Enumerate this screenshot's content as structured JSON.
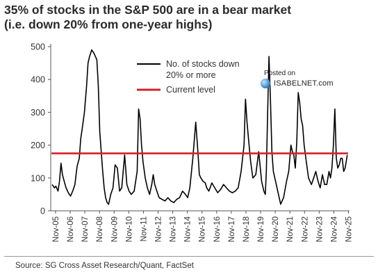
{
  "title": {
    "line1": "35% of stocks in the S&P 500 are in a bear market",
    "line2": "(i.e. down 20% from one-year highs)"
  },
  "source": "Source: SG Cross Asset Research/Quant, FactSet",
  "watermark": {
    "posted": "Posted on",
    "site": "ISABELNET.com"
  },
  "chart_data": {
    "type": "line",
    "title": "35% of stocks in the S&P 500 are in a bear market (i.e. down 20% from one-year highs)",
    "xlabel": "",
    "ylabel": "",
    "ylim": [
      0,
      500
    ],
    "xlim": [
      2005.5,
      2025.9
    ],
    "yticks": [
      0,
      100,
      200,
      300,
      400,
      500
    ],
    "xticks": [
      {
        "pos": 2005.83,
        "label": "Nov-05"
      },
      {
        "pos": 2006.83,
        "label": "Nov-06"
      },
      {
        "pos": 2007.83,
        "label": "Nov-07"
      },
      {
        "pos": 2008.83,
        "label": "Nov-08"
      },
      {
        "pos": 2009.83,
        "label": "Nov-09"
      },
      {
        "pos": 2010.83,
        "label": "Nov-10"
      },
      {
        "pos": 2011.83,
        "label": "Nov-11"
      },
      {
        "pos": 2012.83,
        "label": "Nov-12"
      },
      {
        "pos": 2013.83,
        "label": "Nov-13"
      },
      {
        "pos": 2014.83,
        "label": "Nov-14"
      },
      {
        "pos": 2015.83,
        "label": "Nov-15"
      },
      {
        "pos": 2016.83,
        "label": "Nov-16"
      },
      {
        "pos": 2017.83,
        "label": "Nov-17"
      },
      {
        "pos": 2018.83,
        "label": "Nov-18"
      },
      {
        "pos": 2019.83,
        "label": "Nov-19"
      },
      {
        "pos": 2020.83,
        "label": "Nov-20"
      },
      {
        "pos": 2021.83,
        "label": "Nov-21"
      },
      {
        "pos": 2022.83,
        "label": "Nov-22"
      },
      {
        "pos": 2023.83,
        "label": "Nov-23"
      },
      {
        "pos": 2024.83,
        "label": "Nov-24"
      },
      {
        "pos": 2025.83,
        "label": "Nov-25"
      }
    ],
    "grid": false,
    "legend_position": "top-center",
    "series": [
      {
        "name": "No. of stocks down 20% or more",
        "color": "#000000",
        "x": [
          2005.6,
          2005.75,
          2005.85,
          2006.0,
          2006.1,
          2006.2,
          2006.3,
          2006.45,
          2006.55,
          2006.7,
          2006.85,
          2007.0,
          2007.15,
          2007.3,
          2007.45,
          2007.55,
          2007.65,
          2007.8,
          2007.95,
          2008.05,
          2008.15,
          2008.3,
          2008.45,
          2008.55,
          2008.65,
          2008.75,
          2008.85,
          2008.95,
          2009.05,
          2009.15,
          2009.25,
          2009.35,
          2009.45,
          2009.6,
          2009.75,
          2009.9,
          2010.05,
          2010.2,
          2010.35,
          2010.45,
          2010.55,
          2010.7,
          2010.85,
          2011.0,
          2011.2,
          2011.4,
          2011.5,
          2011.6,
          2011.7,
          2011.8,
          2011.95,
          2012.1,
          2012.25,
          2012.4,
          2012.5,
          2012.6,
          2012.75,
          2012.9,
          2013.1,
          2013.3,
          2013.5,
          2013.7,
          2013.9,
          2014.1,
          2014.3,
          2014.5,
          2014.7,
          2014.85,
          2015.0,
          2015.2,
          2015.4,
          2015.55,
          2015.65,
          2015.75,
          2015.9,
          2016.05,
          2016.15,
          2016.3,
          2016.5,
          2016.7,
          2016.9,
          2017.1,
          2017.3,
          2017.5,
          2017.7,
          2017.9,
          2018.1,
          2018.3,
          2018.5,
          2018.7,
          2018.8,
          2018.9,
          2019.0,
          2019.15,
          2019.3,
          2019.5,
          2019.7,
          2019.9,
          2020.05,
          2020.15,
          2020.22,
          2020.3,
          2020.4,
          2020.5,
          2020.6,
          2020.7,
          2020.8,
          2020.9,
          2021.0,
          2021.2,
          2021.4,
          2021.6,
          2021.75,
          2021.9,
          2022.0,
          2022.1,
          2022.2,
          2022.3,
          2022.4,
          2022.5,
          2022.6,
          2022.7,
          2022.8,
          2022.95,
          2023.1,
          2023.3,
          2023.45,
          2023.6,
          2023.75,
          2023.9,
          2024.05,
          2024.2,
          2024.35,
          2024.5,
          2024.6,
          2024.7,
          2024.8,
          2024.9,
          2025.0,
          2025.1,
          2025.2,
          2025.3,
          2025.4,
          2025.5,
          2025.6,
          2025.75
        ],
        "y": [
          80,
          70,
          75,
          60,
          90,
          145,
          110,
          85,
          70,
          55,
          45,
          60,
          80,
          135,
          160,
          220,
          250,
          300,
          380,
          450,
          470,
          490,
          480,
          470,
          460,
          380,
          240,
          180,
          120,
          70,
          40,
          25,
          20,
          50,
          70,
          140,
          130,
          60,
          70,
          120,
          170,
          80,
          60,
          50,
          60,
          120,
          310,
          280,
          200,
          150,
          100,
          70,
          50,
          80,
          110,
          80,
          60,
          40,
          35,
          30,
          40,
          30,
          25,
          35,
          40,
          60,
          50,
          40,
          70,
          160,
          270,
          180,
          110,
          100,
          90,
          85,
          70,
          60,
          85,
          70,
          55,
          65,
          80,
          70,
          60,
          55,
          60,
          70,
          120,
          200,
          340,
          270,
          220,
          150,
          100,
          110,
          180,
          90,
          60,
          50,
          120,
          280,
          470,
          340,
          180,
          120,
          100,
          80,
          60,
          20,
          40,
          90,
          120,
          200,
          180,
          170,
          130,
          210,
          360,
          330,
          280,
          260,
          200,
          150,
          100,
          80,
          100,
          120,
          90,
          70,
          110,
          80,
          80,
          120,
          100,
          130,
          200,
          310,
          160,
          130,
          140,
          160,
          160,
          120,
          130,
          170
        ]
      },
      {
        "name": "Current level",
        "color": "#d4202a",
        "x": [
          2005.55,
          2025.8
        ],
        "y": [
          175,
          175
        ]
      }
    ]
  }
}
